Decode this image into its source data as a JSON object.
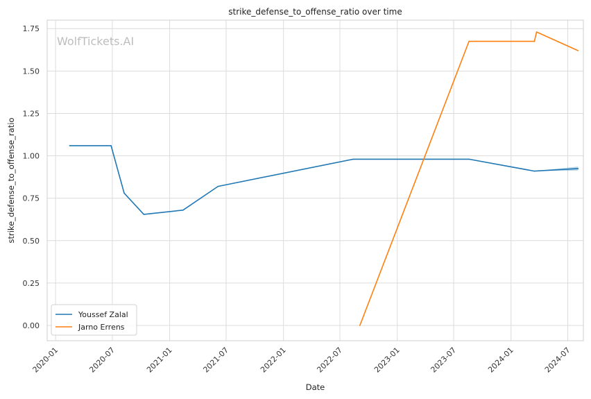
{
  "chart_data": {
    "type": "line",
    "title": "strike_defense_to_offense_ratio over time",
    "xlabel": "Date",
    "ylabel": "strike_defense_to_offense_ratio",
    "watermark": "WolfTickets.AI",
    "xlim": [
      "2019-12-05",
      "2024-08-20"
    ],
    "ylim": [
      -0.09,
      1.8
    ],
    "x_ticks": [
      "2020-01-01",
      "2020-07-01",
      "2021-01-01",
      "2021-07-01",
      "2022-01-01",
      "2022-07-01",
      "2023-01-01",
      "2023-07-01",
      "2024-01-01",
      "2024-07-01"
    ],
    "x_tick_labels": [
      "2020-01",
      "2020-07",
      "2021-01",
      "2021-07",
      "2022-01",
      "2022-07",
      "2023-01",
      "2023-07",
      "2024-01",
      "2024-07"
    ],
    "y_ticks": [
      0.0,
      0.25,
      0.5,
      0.75,
      1.0,
      1.25,
      1.5,
      1.75
    ],
    "y_tick_labels": [
      "0.00",
      "0.25",
      "0.50",
      "0.75",
      "1.00",
      "1.25",
      "1.50",
      "1.75"
    ],
    "grid": true,
    "legend_position": "bottom-left",
    "series": [
      {
        "name": "Youssef Zalal",
        "color": "#1f77b4",
        "points": [
          {
            "x": "2020-02-15",
            "y": 1.06
          },
          {
            "x": "2020-06-27",
            "y": 1.06
          },
          {
            "x": "2020-08-08",
            "y": 0.78
          },
          {
            "x": "2020-10-10",
            "y": 0.655
          },
          {
            "x": "2021-02-13",
            "y": 0.68
          },
          {
            "x": "2021-06-05",
            "y": 0.82
          },
          {
            "x": "2022-08-13",
            "y": 0.98
          },
          {
            "x": "2023-08-19",
            "y": 0.98
          },
          {
            "x": "2024-03-16",
            "y": 0.91
          },
          {
            "x": "2024-08-03",
            "y": 0.925
          }
        ],
        "band": {
          "x": [
            "2024-03-16",
            "2024-08-03"
          ],
          "lower": [
            0.91,
            0.913
          ],
          "upper": [
            0.91,
            0.937
          ]
        }
      },
      {
        "name": "Jarno Errens",
        "color": "#ff7f0e",
        "points": [
          {
            "x": "2022-09-03",
            "y": 0.0
          },
          {
            "x": "2023-08-19",
            "y": 1.675
          },
          {
            "x": "2024-03-16",
            "y": 1.675
          },
          {
            "x": "2024-03-23",
            "y": 1.73
          },
          {
            "x": "2024-08-03",
            "y": 1.62
          }
        ]
      }
    ]
  }
}
